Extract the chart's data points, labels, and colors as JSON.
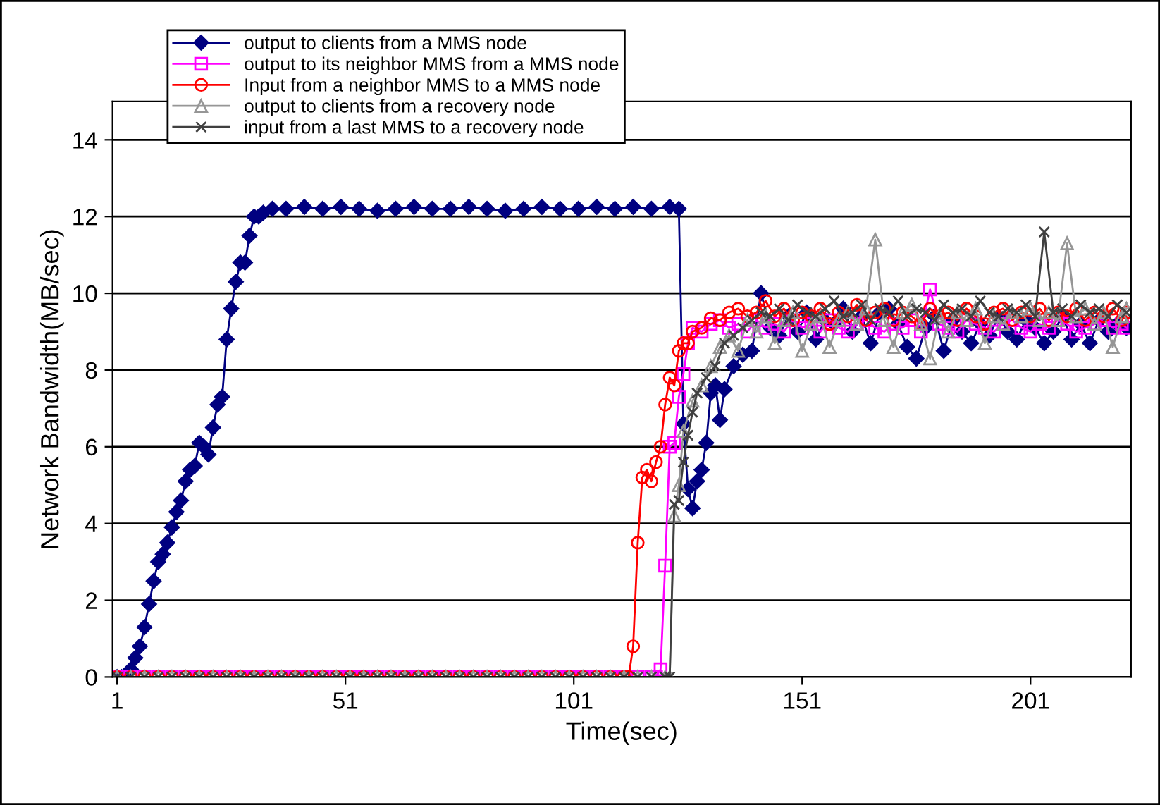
{
  "chart_data": {
    "type": "line",
    "xlabel": "Time(sec)",
    "ylabel": "Network Bandwidth(MB/sec)",
    "xlim": [
      0,
      223
    ],
    "xticks": [
      1,
      51,
      101,
      151,
      201
    ],
    "ylim": [
      0,
      15
    ],
    "yticks": [
      0,
      2,
      4,
      6,
      8,
      10,
      12,
      14
    ],
    "grid": "y",
    "legend": "top left",
    "series": [
      {
        "name": "output to clients from a MMS node",
        "color": "#000080",
        "marker": "diamond",
        "x": [
          1,
          2,
          3,
          4,
          5,
          6,
          7,
          8,
          9,
          10,
          11,
          12,
          13,
          14,
          15,
          16,
          17,
          18,
          19,
          20,
          21,
          22,
          23,
          24,
          25,
          26,
          27,
          28,
          29,
          30,
          31,
          32,
          33,
          35,
          38,
          42,
          46,
          50,
          54,
          58,
          62,
          66,
          70,
          74,
          78,
          82,
          86,
          90,
          94,
          98,
          102,
          106,
          110,
          114,
          118,
          122,
          124,
          125,
          126,
          127,
          128,
          129,
          130,
          131,
          132,
          133,
          134,
          136,
          138,
          140,
          142,
          144,
          146,
          148,
          150,
          152,
          154,
          156,
          158,
          160,
          162,
          164,
          166,
          168,
          170,
          172,
          174,
          176,
          178,
          180,
          182,
          184,
          186,
          188,
          190,
          192,
          194,
          196,
          198,
          200,
          202,
          204,
          206,
          208,
          210,
          212,
          214,
          216,
          218,
          220,
          222
        ],
        "values": [
          0,
          0,
          0,
          0.2,
          0.5,
          0.8,
          1.3,
          1.9,
          2.5,
          3.0,
          3.2,
          3.5,
          3.9,
          4.3,
          4.6,
          5.1,
          5.4,
          5.5,
          6.1,
          6.0,
          5.8,
          6.5,
          7.1,
          7.3,
          8.8,
          9.6,
          10.3,
          10.8,
          10.8,
          11.5,
          12.0,
          12.0,
          12.1,
          12.2,
          12.2,
          12.25,
          12.2,
          12.25,
          12.2,
          12.15,
          12.2,
          12.25,
          12.2,
          12.2,
          12.25,
          12.2,
          12.15,
          12.2,
          12.25,
          12.2,
          12.2,
          12.25,
          12.2,
          12.25,
          12.2,
          12.25,
          12.2,
          6.6,
          4.9,
          4.4,
          5.1,
          5.4,
          6.1,
          7.4,
          7.6,
          6.7,
          7.5,
          8.1,
          8.4,
          8.5,
          10.0,
          9.1,
          8.9,
          9.4,
          9.0,
          9.5,
          8.8,
          9.3,
          9.2,
          9.6,
          9.0,
          9.4,
          8.7,
          9.5,
          9.6,
          9.2,
          8.6,
          8.3,
          9.1,
          9.4,
          8.5,
          9.3,
          9.0,
          8.7,
          9.2,
          8.9,
          9.4,
          9.0,
          8.8,
          9.3,
          9.1,
          8.7,
          9.0,
          9.4,
          8.8,
          9.2,
          8.7,
          9.3,
          9.0,
          9.2,
          9.1
        ]
      },
      {
        "name": "output to its neighbor MMS from a MMS node",
        "color": "#ff00ff",
        "marker": "square",
        "x": [
          1,
          4,
          7,
          10,
          13,
          16,
          19,
          22,
          25,
          28,
          31,
          34,
          37,
          40,
          43,
          46,
          49,
          52,
          55,
          58,
          61,
          64,
          67,
          70,
          73,
          76,
          79,
          82,
          85,
          88,
          91,
          94,
          97,
          100,
          103,
          106,
          109,
          112,
          115,
          118,
          119,
          120,
          121,
          122,
          123,
          124,
          125,
          126,
          127,
          129,
          131,
          133,
          135,
          137,
          139,
          141,
          143,
          145,
          147,
          149,
          151,
          153,
          155,
          157,
          159,
          161,
          163,
          165,
          167,
          169,
          171,
          173,
          175,
          177,
          179,
          181,
          183,
          185,
          187,
          189,
          191,
          193,
          195,
          197,
          199,
          201,
          203,
          205,
          207,
          209,
          211,
          213,
          215,
          217,
          219,
          221,
          222
        ],
        "values": [
          0,
          0,
          0,
          0,
          0,
          0,
          0,
          0,
          0,
          0,
          0,
          0,
          0,
          0,
          0,
          0,
          0,
          0,
          0,
          0,
          0,
          0,
          0,
          0,
          0,
          0,
          0,
          0,
          0,
          0,
          0,
          0,
          0,
          0,
          0,
          0,
          0,
          0,
          0,
          0,
          0,
          0.2,
          2.9,
          6.0,
          6.1,
          7.3,
          7.9,
          8.7,
          9.1,
          9.0,
          9.2,
          9.3,
          9.1,
          9.2,
          9.0,
          9.3,
          9.1,
          9.2,
          9.0,
          9.3,
          9.1,
          9.2,
          9.0,
          9.3,
          9.1,
          9.0,
          9.2,
          9.3,
          9.1,
          9.0,
          9.2,
          9.1,
          9.3,
          9.0,
          10.1,
          9.2,
          9.1,
          9.0,
          9.3,
          9.2,
          9.1,
          9.0,
          9.2,
          9.3,
          9.1,
          9.0,
          9.2,
          9.1,
          9.3,
          9.2,
          9.0,
          9.1,
          9.2,
          9.3,
          9.1,
          9.2,
          9.1
        ]
      },
      {
        "name": "Input from a neighbor MMS to a MMS node",
        "color": "#ff0000",
        "marker": "circle",
        "x": [
          1,
          4,
          7,
          10,
          13,
          16,
          19,
          22,
          25,
          28,
          31,
          34,
          37,
          40,
          43,
          46,
          49,
          52,
          55,
          58,
          61,
          64,
          67,
          70,
          73,
          76,
          79,
          82,
          85,
          88,
          91,
          94,
          97,
          100,
          103,
          106,
          109,
          112,
          113,
          114,
          115,
          116,
          117,
          118,
          119,
          120,
          121,
          122,
          123,
          124,
          125,
          126,
          127,
          129,
          131,
          133,
          135,
          137,
          139,
          141,
          143,
          145,
          147,
          149,
          151,
          153,
          155,
          157,
          159,
          161,
          163,
          165,
          167,
          169,
          171,
          173,
          175,
          177,
          179,
          181,
          183,
          185,
          187,
          189,
          191,
          193,
          195,
          197,
          199,
          201,
          203,
          205,
          207,
          209,
          211,
          213,
          215,
          217,
          219,
          221,
          222
        ],
        "values": [
          0,
          0,
          0,
          0,
          0,
          0,
          0,
          0,
          0,
          0,
          0,
          0,
          0,
          0,
          0,
          0,
          0,
          0,
          0,
          0,
          0,
          0,
          0,
          0,
          0,
          0,
          0,
          0,
          0,
          0,
          0,
          0,
          0,
          0,
          0,
          0,
          0,
          0,
          0,
          0.8,
          3.5,
          5.2,
          5.4,
          5.1,
          5.6,
          6.0,
          7.1,
          7.8,
          7.6,
          8.5,
          8.7,
          8.7,
          9.0,
          9.1,
          9.35,
          9.3,
          9.5,
          9.6,
          9.4,
          9.5,
          9.8,
          9.4,
          9.6,
          9.3,
          9.5,
          9.4,
          9.6,
          9.2,
          9.5,
          9.4,
          9.7,
          9.3,
          9.5,
          9.6,
          9.3,
          9.5,
          9.4,
          9.2,
          9.6,
          9.4,
          9.5,
          9.3,
          9.6,
          9.4,
          9.2,
          9.5,
          9.6,
          9.3,
          9.5,
          9.4,
          9.6,
          9.3,
          9.5,
          9.4,
          9.6,
          9.3,
          9.5,
          9.4,
          9.6,
          9.3,
          9.5
        ]
      },
      {
        "name": "output to clients from a recovery node",
        "color": "#969696",
        "marker": "triangle",
        "x": [
          1,
          4,
          7,
          10,
          13,
          16,
          19,
          22,
          25,
          28,
          31,
          34,
          37,
          40,
          43,
          46,
          49,
          52,
          55,
          58,
          61,
          64,
          67,
          70,
          73,
          76,
          79,
          82,
          85,
          88,
          91,
          94,
          97,
          100,
          103,
          106,
          109,
          112,
          115,
          118,
          121,
          122,
          123,
          124,
          125,
          127,
          129,
          131,
          133,
          135,
          137,
          139,
          141,
          143,
          145,
          147,
          149,
          151,
          153,
          155,
          157,
          159,
          161,
          163,
          165,
          167,
          169,
          171,
          173,
          175,
          177,
          179,
          181,
          183,
          185,
          187,
          189,
          191,
          193,
          195,
          197,
          199,
          201,
          203,
          205,
          207,
          209,
          211,
          213,
          215,
          217,
          219,
          221,
          222
        ],
        "values": [
          0,
          0,
          0,
          0,
          0,
          0,
          0,
          0,
          0,
          0,
          0,
          0,
          0,
          0,
          0,
          0,
          0,
          0,
          0,
          0,
          0,
          0,
          0,
          0,
          0,
          0,
          0,
          0,
          0,
          0,
          0,
          0,
          0,
          0,
          0,
          0,
          0,
          0,
          0,
          0,
          0,
          0,
          4.2,
          5.0,
          6.4,
          7.2,
          7.6,
          8.1,
          8.6,
          8.9,
          8.5,
          9.3,
          9.0,
          9.4,
          8.7,
          9.3,
          9.5,
          8.5,
          9.2,
          9.4,
          8.6,
          9.3,
          9.5,
          9.2,
          9.6,
          11.4,
          9.3,
          8.6,
          9.5,
          9.7,
          9.2,
          8.3,
          9.4,
          9.0,
          9.5,
          9.3,
          9.6,
          8.7,
          9.4,
          9.2,
          9.5,
          9.4,
          9.6,
          9.3,
          9.5,
          9.3,
          11.3,
          9.4,
          9.6,
          9.2,
          9.5,
          8.6,
          9.4,
          9.6
        ]
      },
      {
        "name": "input from a last MMS to a recovery node",
        "color": "#404040",
        "marker": "cross",
        "x": [
          1,
          4,
          7,
          10,
          13,
          16,
          19,
          22,
          25,
          28,
          31,
          34,
          37,
          40,
          43,
          46,
          49,
          52,
          55,
          58,
          61,
          64,
          67,
          70,
          73,
          76,
          79,
          82,
          85,
          88,
          91,
          94,
          97,
          100,
          103,
          106,
          109,
          112,
          115,
          118,
          121,
          122,
          123,
          124,
          125,
          126,
          127,
          128,
          130,
          132,
          134,
          136,
          138,
          140,
          142,
          144,
          146,
          148,
          150,
          152,
          154,
          156,
          158,
          160,
          162,
          164,
          166,
          168,
          170,
          172,
          174,
          176,
          178,
          180,
          182,
          184,
          186,
          188,
          190,
          192,
          194,
          196,
          198,
          200,
          202,
          204,
          206,
          208,
          210,
          212,
          214,
          216,
          218,
          220,
          222
        ],
        "values": [
          0,
          0,
          0,
          0,
          0,
          0,
          0,
          0,
          0,
          0,
          0,
          0,
          0,
          0,
          0,
          0,
          0,
          0,
          0,
          0,
          0,
          0,
          0,
          0,
          0,
          0,
          0,
          0,
          0,
          0,
          0,
          0,
          0,
          0,
          0,
          0,
          0,
          0,
          0,
          0,
          0,
          0,
          4.5,
          4.6,
          5.6,
          6.3,
          6.9,
          7.4,
          7.8,
          8.1,
          8.7,
          8.9,
          9.1,
          9.3,
          9.5,
          9.4,
          9.6,
          9.3,
          9.7,
          9.5,
          9.4,
          9.6,
          9.8,
          9.4,
          9.5,
          9.7,
          9.3,
          9.6,
          9.5,
          9.8,
          9.4,
          9.6,
          9.5,
          9.3,
          9.7,
          9.5,
          9.6,
          9.4,
          9.8,
          9.5,
          9.4,
          9.6,
          9.5,
          9.7,
          9.4,
          11.6,
          9.5,
          9.6,
          9.4,
          9.7,
          9.5,
          9.6,
          9.4,
          9.7,
          9.5
        ]
      }
    ]
  }
}
